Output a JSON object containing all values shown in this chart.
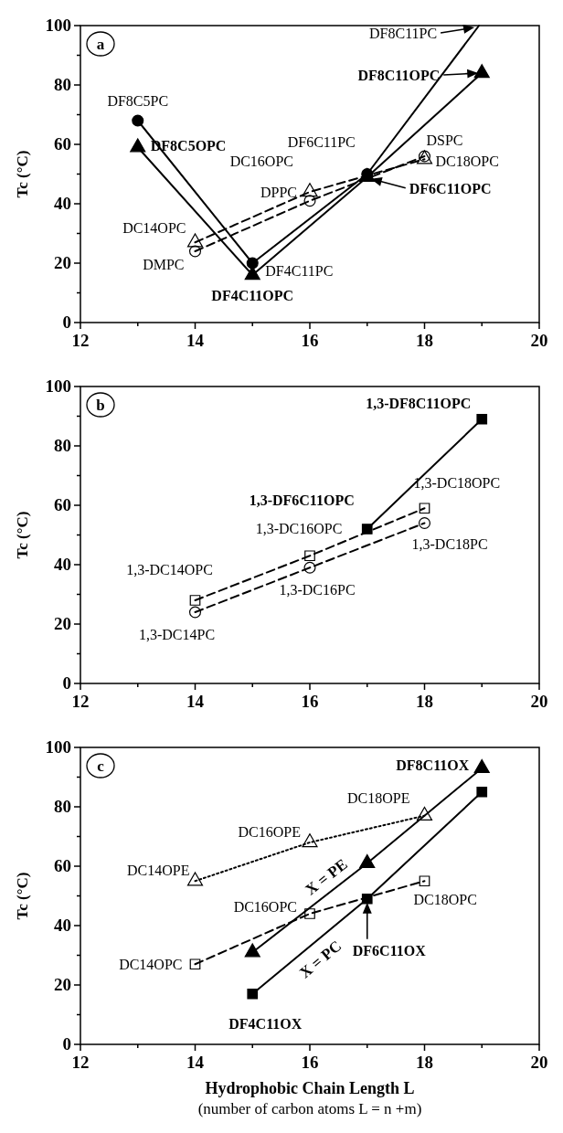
{
  "chart_data": [
    {
      "type": "line",
      "ylabel": "Tc (°C)",
      "xlim": [
        12,
        20
      ],
      "ylim": [
        0,
        100
      ],
      "xticks": [
        12,
        {
          "value": 13,
          "label": null
        },
        14,
        {
          "value": 15,
          "label": null
        },
        16,
        {
          "value": 17,
          "label": null
        },
        18,
        {
          "value": 19,
          "label": null
        },
        20
      ],
      "yticks": [
        0,
        {
          "value": 10,
          "label": null
        },
        20,
        {
          "value": 30,
          "label": null
        },
        40,
        {
          "value": 50,
          "label": null
        },
        60,
        {
          "value": 70,
          "label": null
        },
        80,
        {
          "value": 90,
          "label": null
        },
        100
      ],
      "series": [
        {
          "color": "#000000",
          "x": [
            17,
            18.95
          ],
          "values": [
            50,
            100
          ],
          "line_style": "solid"
        },
        {
          "color": "#000000",
          "x": [
            13,
            15,
            17,
            19
          ],
          "values": [
            59,
            16,
            49,
            84
          ],
          "marker": "triangle",
          "line_style": "solid"
        },
        {
          "color": "#000000",
          "x": [
            13,
            15,
            17
          ],
          "values": [
            68,
            20,
            50
          ],
          "marker": "circle",
          "line_style": "solid"
        },
        {
          "color": "#000000",
          "x": [
            14,
            16,
            18
          ],
          "values": [
            27,
            44,
            55
          ],
          "marker": "triangle",
          "line_style": "dashed"
        },
        {
          "color": "#000000",
          "x": [
            14,
            16,
            18
          ],
          "values": [
            24,
            41,
            56
          ],
          "marker": "circle",
          "line_style": "dashed"
        }
      ],
      "annotations": [
        "a",
        {
          "text": "DF8C5PC",
          "x": 13,
          "y": 68
        },
        {
          "text": "DF8C5OPC",
          "x": 13,
          "y": 59
        },
        {
          "text": "DF4C11PC",
          "x": 15,
          "y": 20
        },
        {
          "text": "DF4C11OPC",
          "x": 15,
          "y": 16
        },
        {
          "text": "DF6C11PC",
          "x": 17,
          "y": 50
        },
        {
          "text": "DF6C11OPC",
          "x": 17,
          "y": 49
        },
        {
          "text": "DF8C11PC",
          "x": 18.95,
          "y": 100
        },
        {
          "text": "DF8C11OPC",
          "x": 19,
          "y": 84
        },
        {
          "text": "DC14OPC",
          "x": 14,
          "y": 27
        },
        {
          "text": "DMPC",
          "x": 14,
          "y": 24
        },
        {
          "text": "DC16OPC",
          "x": 16,
          "y": 44
        },
        {
          "text": "DPPC",
          "x": 16,
          "y": 41
        },
        {
          "text": "DSPC",
          "x": 18,
          "y": 56
        },
        {
          "text": "DC18OPC",
          "x": 18,
          "y": 55
        }
      ]
    },
    {
      "type": "line",
      "ylabel": "Tc (°C)",
      "xlim": [
        12,
        20
      ],
      "ylim": [
        0,
        100
      ],
      "xticks": [
        12,
        {
          "value": 13,
          "label": null
        },
        14,
        {
          "value": 15,
          "label": null
        },
        16,
        {
          "value": 17,
          "label": null
        },
        18,
        {
          "value": 19,
          "label": null
        },
        20
      ],
      "yticks": [
        0,
        {
          "value": 10,
          "label": null
        },
        20,
        {
          "value": 30,
          "label": null
        },
        40,
        {
          "value": 50,
          "label": null
        },
        60,
        {
          "value": 70,
          "label": null
        },
        80,
        {
          "value": 90,
          "label": null
        },
        100
      ],
      "series": [
        {
          "color": "#000000",
          "x": [
            17,
            19
          ],
          "values": [
            52,
            89
          ],
          "marker": "square",
          "line_style": "solid"
        },
        {
          "color": "#000000",
          "x": [
            14,
            16,
            18
          ],
          "values": [
            28,
            43,
            59
          ],
          "marker": "square",
          "line_style": "dashed"
        },
        {
          "color": "#000000",
          "x": [
            14,
            16,
            18
          ],
          "values": [
            24,
            39,
            54
          ],
          "marker": "circle",
          "line_style": "dashed"
        }
      ],
      "annotations": [
        "b",
        {
          "text": "1,3-DF8C11OPC",
          "x": 19,
          "y": 89
        },
        {
          "text": "1,3-DF6C11OPC",
          "x": 17,
          "y": 52
        },
        {
          "text": "1,3-DC18OPC",
          "x": 18,
          "y": 59
        },
        {
          "text": "1,3-DC18PC",
          "x": 18,
          "y": 54
        },
        {
          "text": "1,3-DC16OPC",
          "x": 16,
          "y": 43
        },
        {
          "text": "1,3-DC16PC",
          "x": 16,
          "y": 39
        },
        {
          "text": "1,3-DC14OPC",
          "x": 14,
          "y": 28
        },
        {
          "text": "1,3-DC14PC",
          "x": 14,
          "y": 24
        }
      ]
    },
    {
      "type": "line",
      "ylabel": "Tc (°C)",
      "xlabel": "Hydrophobic Chain Length L",
      "xlim": [
        12,
        20
      ],
      "ylim": [
        0,
        100
      ],
      "xticks": [
        12,
        {
          "value": 13,
          "label": null
        },
        14,
        {
          "value": 15,
          "label": null
        },
        16,
        {
          "value": 17,
          "label": null
        },
        18,
        {
          "value": 19,
          "label": null
        },
        20
      ],
      "yticks": [
        0,
        {
          "value": 10,
          "label": null
        },
        20,
        {
          "value": 30,
          "label": null
        },
        40,
        {
          "value": 50,
          "label": null
        },
        60,
        {
          "value": 70,
          "label": null
        },
        80,
        {
          "value": 90,
          "label": null
        },
        100
      ],
      "series": [
        {
          "name": "X = PE",
          "color": "#000000",
          "x": [
            15,
            17,
            19
          ],
          "values": [
            31,
            61,
            93
          ],
          "marker": "triangle",
          "line_style": "solid"
        },
        {
          "name": "X = PC",
          "color": "#000000",
          "x": [
            15,
            17,
            19
          ],
          "values": [
            17,
            49,
            85
          ],
          "marker": "square",
          "line_style": "solid"
        },
        {
          "color": "#000000",
          "x": [
            14,
            16,
            18
          ],
          "values": [
            55,
            68,
            77
          ],
          "marker": "triangle",
          "line_style": "dotted"
        },
        {
          "color": "#000000",
          "x": [
            14,
            16,
            18
          ],
          "values": [
            27,
            44,
            55
          ],
          "marker": "square",
          "line_style": "dashed"
        }
      ],
      "annotations": [
        "c",
        "(number of carbon atoms L = n +m)",
        {
          "text": "DF8C11OX",
          "x": 19,
          "y": 93
        },
        {
          "text": "DF6C11OX",
          "x": 17,
          "y": 49
        },
        {
          "text": "DF4C11OX",
          "x": 15,
          "y": 17
        },
        {
          "text": "DC18OPE",
          "x": 18,
          "y": 77
        },
        {
          "text": "DC16OPE",
          "x": 16,
          "y": 68
        },
        {
          "text": "DC14OPE",
          "x": 14,
          "y": 55
        },
        {
          "text": "DC16OPC",
          "x": 16,
          "y": 44
        },
        {
          "text": "DC18OPC",
          "x": 18,
          "y": 55
        },
        {
          "text": "DC14OPC",
          "x": 14,
          "y": 27
        }
      ]
    }
  ]
}
